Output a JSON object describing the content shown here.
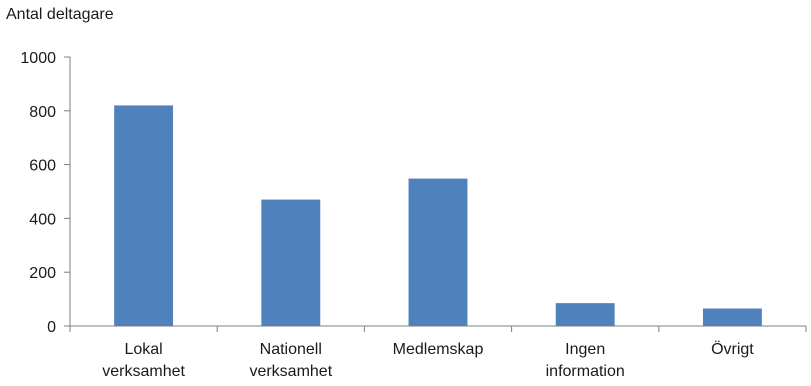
{
  "chart_data": {
    "type": "bar",
    "ylabel": "Antal deltagare",
    "xlabel": "",
    "categories": [
      [
        "Lokal",
        "verksamhet"
      ],
      [
        "Nationell",
        "verksamhet"
      ],
      [
        "Medlemskap"
      ],
      [
        "Ingen",
        "information"
      ],
      [
        "Övrigt"
      ]
    ],
    "values": [
      820,
      470,
      548,
      85,
      65
    ],
    "ylim": [
      0,
      1000
    ],
    "yticks": [
      0,
      200,
      400,
      600,
      800,
      1000
    ],
    "grid": false,
    "bar_color": "#4f81bd",
    "axis_color": "#7f7f7f"
  }
}
